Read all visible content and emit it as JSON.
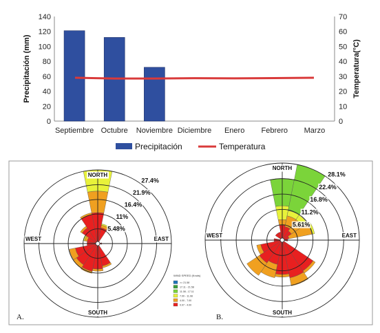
{
  "chart_data": [
    {
      "type": "bar",
      "categories": [
        "Septiembre",
        "Octubre",
        "Noviembre",
        "Diciembre",
        "Enero",
        "Febrero",
        "Marzo"
      ],
      "series": [
        {
          "name": "Precipitación",
          "type": "bar",
          "axis": "left",
          "values": [
            121,
            112,
            72,
            null,
            null,
            null,
            null
          ],
          "color": "#2f4f9f"
        },
        {
          "name": "Temperatura",
          "type": "line",
          "axis": "right",
          "values": [
            29,
            28.5,
            28.5,
            28.7,
            28.6,
            28.8,
            29
          ],
          "color": "#d93a3a"
        }
      ],
      "ylabel": "Precipitación (mm)",
      "ylabel_right": "Temperatura(°C)",
      "ylim": [
        0,
        140
      ],
      "ylim_right": [
        0,
        70
      ],
      "yticks": [
        "0",
        "20",
        "40",
        "60",
        "80",
        "100",
        "120",
        "140"
      ],
      "yticks_right": [
        "0",
        "10",
        "20",
        "30",
        "40",
        "50",
        "60",
        "70"
      ],
      "legend": [
        "Precipitación",
        "Temperatura"
      ],
      "legend_position": "bottom"
    },
    {
      "type": "windrose",
      "panel_label": "A.",
      "directions": {
        "north": "NORTH",
        "south": "SOUTH",
        "east": "EAST",
        "west": "WEST"
      },
      "ring_labels": [
        "5.48%",
        "11%",
        "16.4%",
        "21.9%",
        "27.4%"
      ],
      "ring_values": [
        5.48,
        11,
        16.4,
        21.9,
        27.4
      ],
      "speed_legend": {
        "title": "WIND SPEED (Knots)",
        "bins": [
          ">= 21.58",
          "17.11 - 21.58",
          "11.08 - 17.11",
          "7.00 - 11.08",
          "4.00 - 7.00",
          "0.97 - 4.00"
        ],
        "colors": [
          "#1e73b8",
          "#3a9e3a",
          "#7bd43a",
          "#e8f23a",
          "#f0a020",
          "#e82020"
        ]
      },
      "petals": [
        {
          "dir": 0,
          "red": 11.5,
          "orange": 19.5,
          "yellow": 27.4
        },
        {
          "dir": 22.5,
          "red": 6,
          "orange": 7,
          "yellow": 7.5
        },
        {
          "dir": 90,
          "red": 1.5
        },
        {
          "dir": 157.5,
          "red": 8.5,
          "orange": 9.2
        },
        {
          "dir": 180,
          "red": 9.5,
          "orange": 10.3
        },
        {
          "dir": 202.5,
          "red": 10.5,
          "orange": 11.3
        },
        {
          "dir": 225,
          "red": 9.5,
          "orange": 11
        },
        {
          "dir": 247.5,
          "red": 8.5,
          "orange": 10.8
        },
        {
          "dir": 270,
          "red": 4
        },
        {
          "dir": 292.5,
          "red": 4,
          "orange": 5,
          "yellow": 5.5
        },
        {
          "dir": 315,
          "red": 7,
          "orange": 7.8
        },
        {
          "dir": 337.5,
          "red": 11,
          "orange": 11.7
        }
      ]
    },
    {
      "type": "windrose",
      "panel_label": "B.",
      "directions": {
        "north": "NORTH",
        "south": "SOUTH",
        "east": "EAST",
        "west": "WEST"
      },
      "ring_labels": [
        "5.61%",
        "11.2%",
        "16.8%",
        "22.4%",
        "28.1%"
      ],
      "ring_values": [
        5.61,
        11.2,
        16.8,
        22.4,
        28.1
      ],
      "petals": [
        {
          "dir": 0,
          "red": 5.5,
          "orange": 7.5,
          "yellow": 12.5,
          "green": 22.5
        },
        {
          "dir": 22.5,
          "red": 5,
          "orange": 9,
          "yellow": 11,
          "green": 28.1
        },
        {
          "dir": 45,
          "red": 4,
          "orange": 9,
          "yellow": 11
        },
        {
          "dir": 67.5,
          "red": 2.5,
          "orange": 11,
          "yellow": 12
        },
        {
          "dir": 90,
          "red": 2
        },
        {
          "dir": 135,
          "red": 13.5,
          "orange": 14.5
        },
        {
          "dir": 157.5,
          "red": 14,
          "orange": 17
        },
        {
          "dir": 180,
          "red": 12.5,
          "orange": 13.5
        },
        {
          "dir": 202.5,
          "red": 9,
          "orange": 14
        },
        {
          "dir": 225,
          "red": 10,
          "orange": 15.5
        },
        {
          "dir": 247.5,
          "red": 8,
          "orange": 9.5
        },
        {
          "dir": 270,
          "red": 3
        },
        {
          "dir": 315,
          "red": 3
        },
        {
          "dir": 337.5,
          "red": 3
        }
      ]
    }
  ]
}
